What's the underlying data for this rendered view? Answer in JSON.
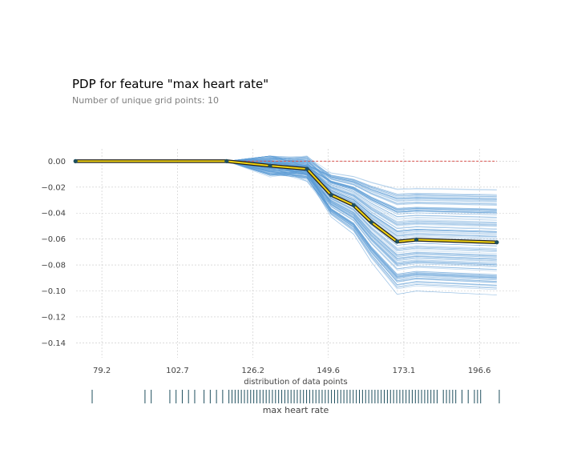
{
  "chart_data": {
    "type": "line",
    "title": "PDP for feature \"max heart rate\"",
    "subtitle": "Number of unique grid points: 10",
    "xlabel": "distribution of data points",
    "dist_label": "max heart rate",
    "xlim": [
      71.2,
      209
    ],
    "ylim": [
      -0.1515,
      0.0095
    ],
    "xticks": [
      79.2,
      102.7,
      126.2,
      149.6,
      173.1,
      196.6
    ],
    "xtick_labels": [
      "79.2",
      "102.7",
      "126.2",
      "149.6",
      "173.1",
      "196.6"
    ],
    "yticks": [
      0.0,
      -0.02,
      -0.04,
      -0.06,
      -0.08,
      -0.1,
      -0.12,
      -0.14
    ],
    "ytick_labels": [
      "0.00",
      "−0.02",
      "−0.04",
      "−0.06",
      "−0.08",
      "−0.10",
      "−0.12",
      "−0.14"
    ],
    "grid": true,
    "series": [
      {
        "role": "average",
        "x": [
          71,
          118,
          131.5,
          143,
          150.5,
          157.5,
          163,
          171,
          177,
          202
        ],
        "y": [
          0.0,
          0.0,
          -0.0035,
          -0.006,
          -0.026,
          -0.034,
          -0.047,
          -0.062,
          -0.0605,
          -0.0625
        ]
      }
    ],
    "baseline": 0.0,
    "ice_lines": {
      "count": 160,
      "note": "individual conditional expectation lines"
    },
    "data_distribution": [
      71,
      88,
      90,
      96,
      98,
      100,
      102,
      104,
      107,
      109,
      111,
      113,
      115,
      116,
      117,
      118,
      119,
      120,
      121,
      122,
      123,
      124,
      125,
      126,
      127,
      128,
      129,
      130,
      131,
      132,
      133,
      134,
      135,
      136,
      137,
      138,
      139,
      140,
      141,
      142,
      143,
      144,
      145,
      146,
      147,
      148,
      149,
      150,
      151,
      152,
      153,
      154,
      155,
      156,
      157,
      158,
      159,
      160,
      161,
      162,
      163,
      164,
      165,
      166,
      167,
      168,
      169,
      170,
      171,
      172,
      173,
      174,
      175,
      176,
      177,
      178,
      179,
      180,
      181,
      182,
      184,
      185,
      186,
      187,
      188,
      190,
      192,
      194,
      195,
      196,
      202
    ],
    "colors": {
      "ice": "#5b9bd5",
      "average_outline": "#222222",
      "average": "#f2d30f",
      "points": "#1f4f5e",
      "baseline": "#d9534f",
      "grid": "#c8c8c8",
      "ticks": "#1f4f5e"
    }
  }
}
